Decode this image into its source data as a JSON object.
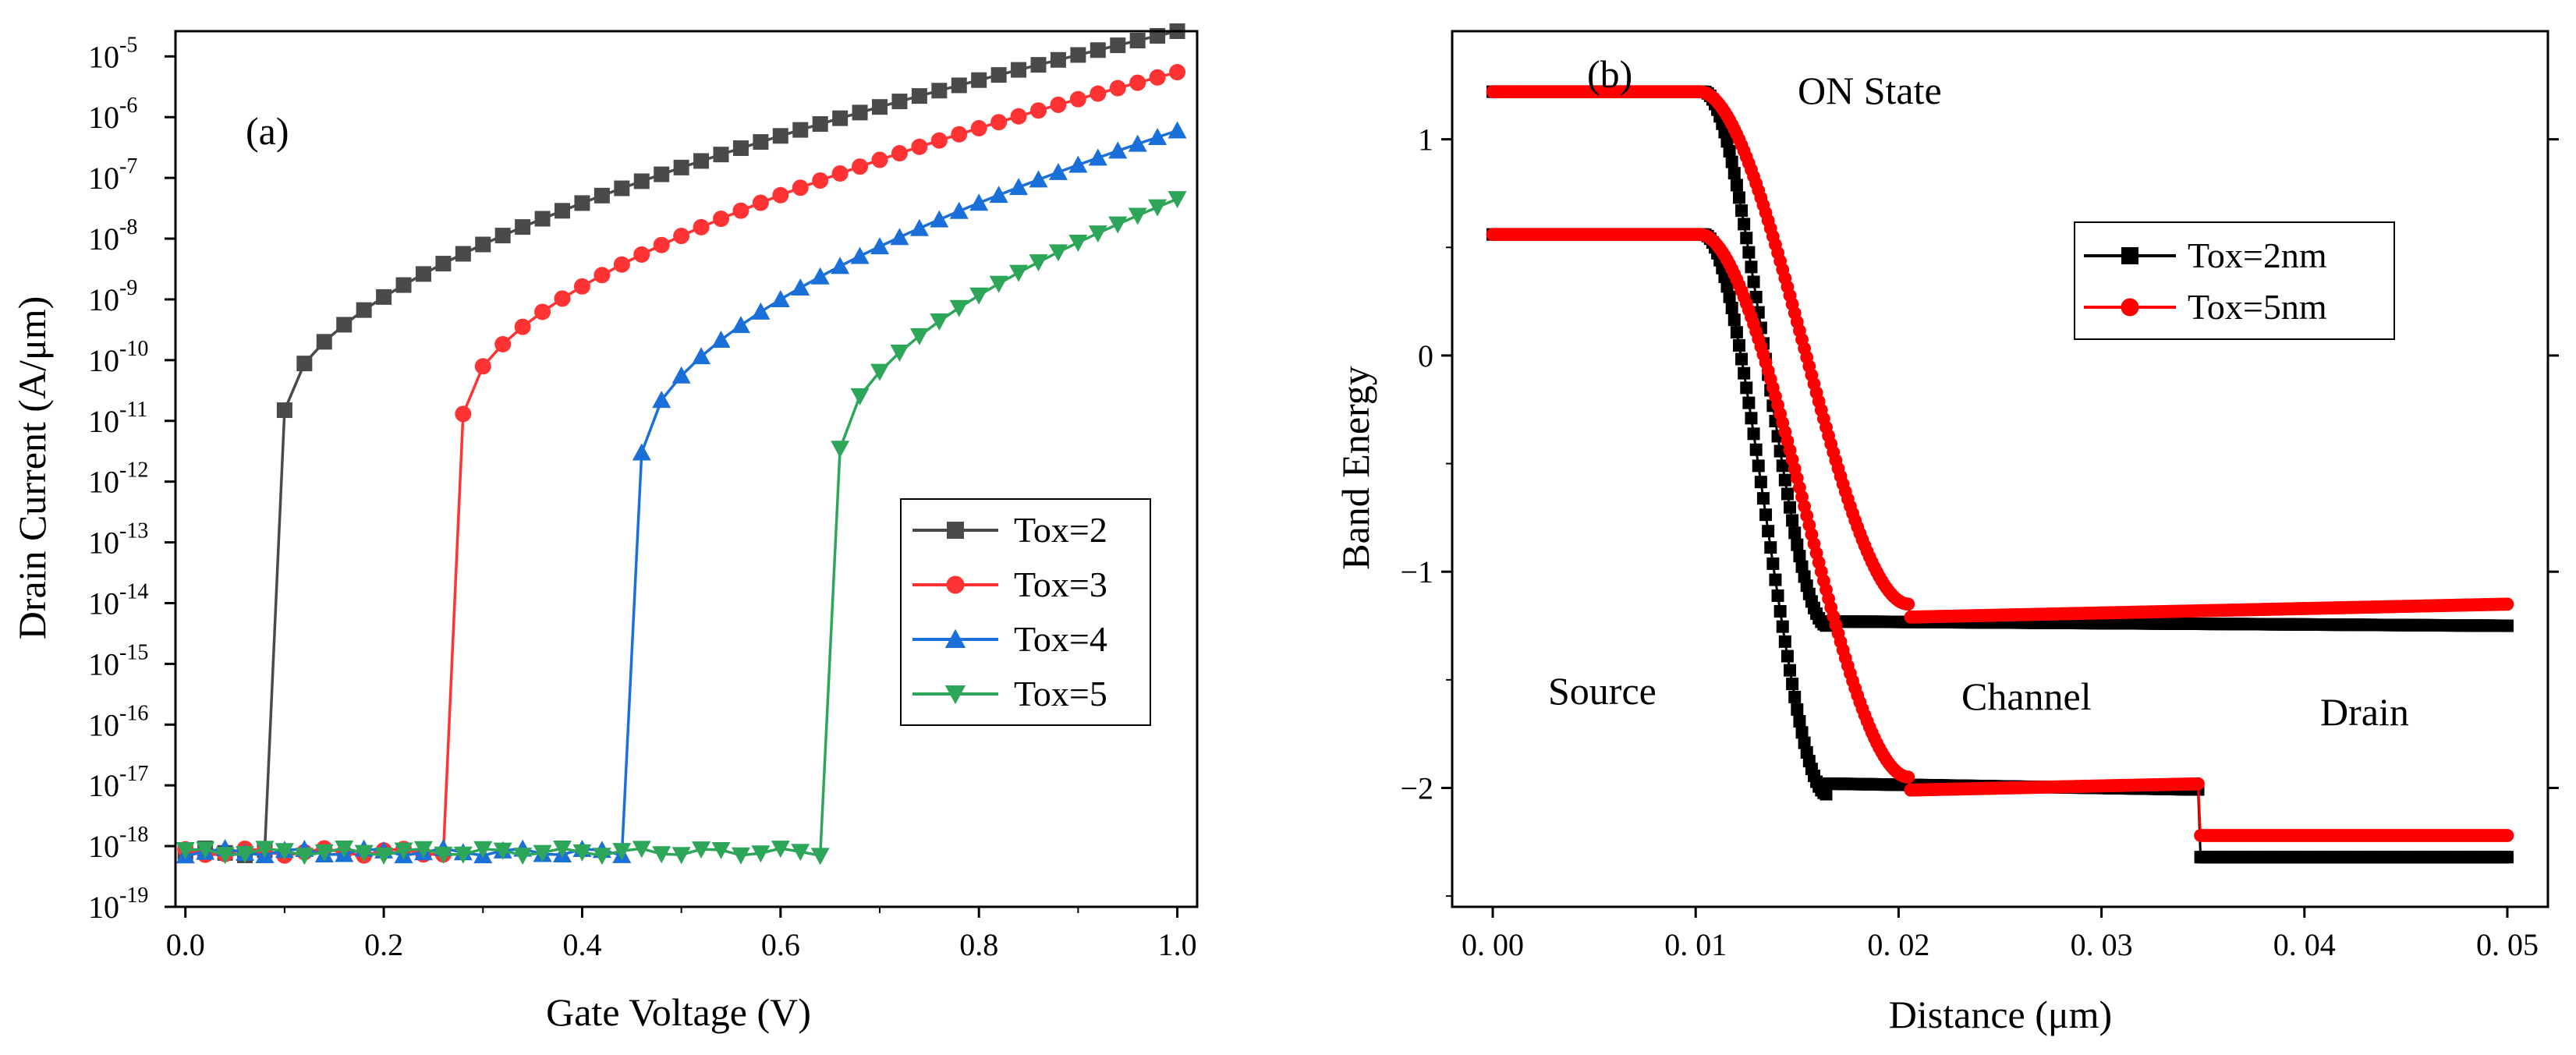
{
  "chart_data": [
    {
      "panel": "(a)",
      "type": "line",
      "xlabel": "Gate Voltage (V)",
      "ylabel": "Drain Current (A/μm)",
      "xlim": [
        -0.01,
        1.02
      ],
      "ylim": [
        1e-19,
        2.6e-05
      ],
      "yscale": "log",
      "xticks": [
        0.0,
        0.2,
        0.4,
        0.6,
        0.8,
        1.0
      ],
      "xtick_labels": [
        "0.0",
        "0.2",
        "0.4",
        "0.6",
        "0.8",
        "1.0"
      ],
      "ytick_exponents": [
        -19,
        -18,
        -17,
        -16,
        -15,
        -14,
        -13,
        -12,
        -11,
        -10,
        -9,
        -8,
        -7,
        -6,
        -5
      ],
      "ytick_base": "10",
      "grid": false,
      "legend_position": "center-right",
      "series": [
        {
          "name": "Tox=2",
          "color": "#4a4a4a",
          "marker": "square",
          "threshold": 0.08,
          "v1": 0.1,
          "i1": 1.5e-11,
          "iend": 2.6e-05
        },
        {
          "name": "Tox=3",
          "color": "#ff3333",
          "marker": "circle",
          "threshold": 0.26,
          "v1": 0.28,
          "i1": 1.3e-11,
          "iend": 5.5e-06
        },
        {
          "name": "Tox=4",
          "color": "#1a6fd8",
          "marker": "triangle-up",
          "threshold": 0.44,
          "v1": 0.46,
          "i1": 3e-12,
          "iend": 6e-07
        },
        {
          "name": "Tox=5",
          "color": "#2ea65a",
          "marker": "triangle-down",
          "threshold": 0.64,
          "v1": 0.66,
          "i1": 3.5e-12,
          "iend": 4.5e-08
        }
      ],
      "off_current": 8e-19,
      "annotation": "(a)"
    },
    {
      "panel": "(b)",
      "type": "line",
      "xlabel": "Distance (μm)",
      "ylabel": "Band Energy",
      "xlim": [
        -0.002,
        0.052
      ],
      "ylim": [
        -2.55,
        1.5
      ],
      "xticks": [
        0.0,
        0.01,
        0.02,
        0.03,
        0.04,
        0.05
      ],
      "xtick_labels": [
        "0. 00",
        "0. 01",
        "0. 02",
        "0. 03",
        "0. 04",
        "0. 05"
      ],
      "yticks": [
        -2,
        -1,
        0,
        1
      ],
      "ytick_labels": [
        "−2",
        "−1",
        "0",
        "1"
      ],
      "grid": false,
      "legend_position": "upper-right",
      "series": [
        {
          "name": "Tox=2nm",
          "color": "#000000",
          "marker": "square",
          "bands": [
            {
              "left": 1.22,
              "right": -1.25,
              "x0": 0.0104,
              "x1": 0.0165,
              "tail": -0.02
            },
            {
              "left": 0.56,
              "right": -2.03,
              "x0": 0.0104,
              "x1": 0.0165,
              "tail": -0.05,
              "step_x": 0.0348,
              "step_to": -2.32
            }
          ]
        },
        {
          "name": "Tox=5nm",
          "color": "#ff0000",
          "marker": "circle",
          "bands": [
            {
              "left": 1.22,
              "right": -1.15,
              "x0": 0.0102,
              "x1": 0.0205,
              "tail": 0.06
            },
            {
              "left": 0.56,
              "right": -1.95,
              "x0": 0.0102,
              "x1": 0.0205,
              "tail": 0.06,
              "step_x": 0.0348,
              "step_to": -2.22
            }
          ]
        }
      ],
      "annotations": [
        "(b)",
        "ON State",
        "Source",
        "Channel",
        "Drain"
      ]
    }
  ]
}
